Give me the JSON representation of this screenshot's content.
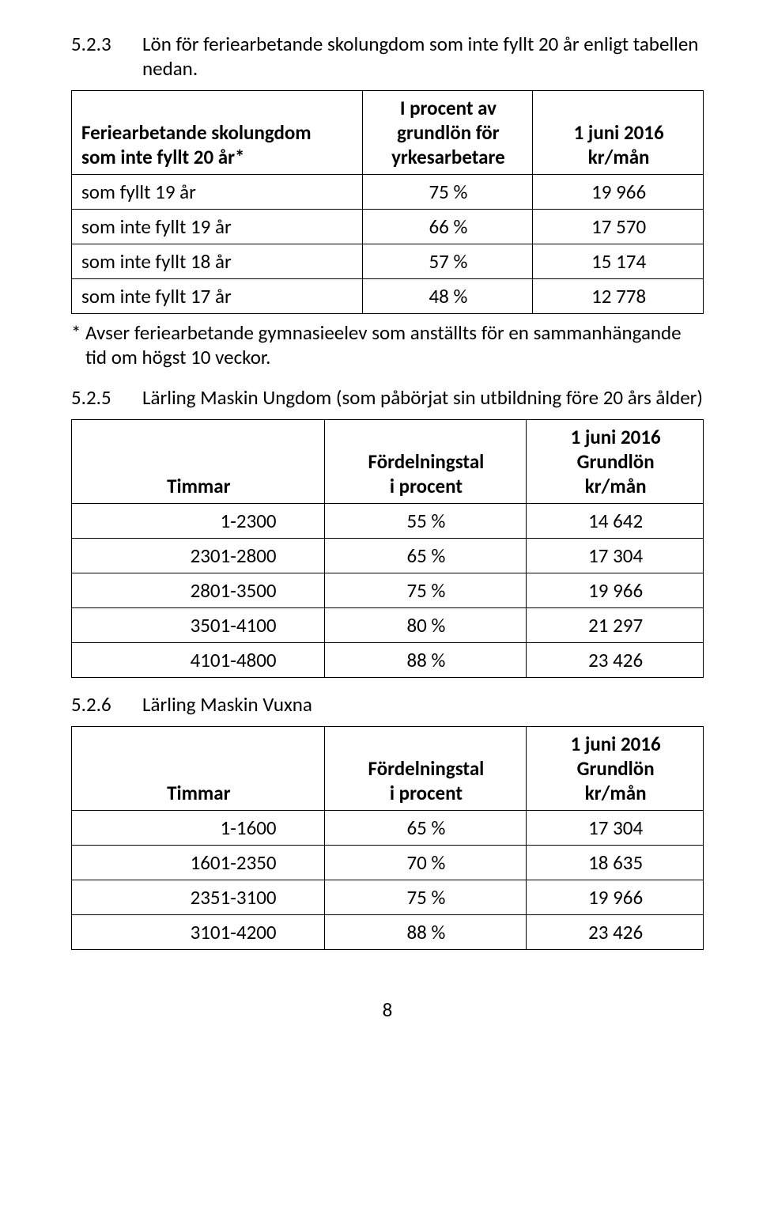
{
  "section523": {
    "num": "5.2.3",
    "title": "Lön för feriearbetande skolungdom som inte fyllt 20 år enligt tabellen nedan."
  },
  "table1": {
    "head": {
      "c1a": "Feriearbetande skolungdom",
      "c1b": "som inte fyllt 20 år*",
      "c2a": "I procent av",
      "c2b": "grundlön för",
      "c2c": "yrkesarbetare",
      "c3a": "1 juni 2016",
      "c3b": "kr/mån"
    },
    "rows": [
      {
        "label": "som fyllt 19 år",
        "pct": "75 %",
        "val": "19 966"
      },
      {
        "label": "som inte fyllt 19 år",
        "pct": "66 %",
        "val": "17 570"
      },
      {
        "label": "som inte fyllt 18 år",
        "pct": "57 %",
        "val": "15 174"
      },
      {
        "label": "som inte fyllt 17 år",
        "pct": "48 %",
        "val": "12 778"
      }
    ]
  },
  "footnote": {
    "star": "*",
    "text": "Avser feriearbetande gymnasieelev som anställts för en sammanhängande tid om högst 10 veckor."
  },
  "section525": {
    "num": "5.2.5",
    "title": "Lärling Maskin Ungdom (som påbörjat sin utbildning före 20 års ålder)"
  },
  "table2": {
    "head": {
      "c1": "Timmar",
      "c2a": "Fördelningstal",
      "c2b": "i procent",
      "c3a": "1 juni 2016",
      "c3b": "Grundlön",
      "c3c": "kr/mån"
    },
    "rows": [
      {
        "label": "1-2300",
        "pct": "55 %",
        "val": "14 642"
      },
      {
        "label": "2301-2800",
        "pct": "65 %",
        "val": "17 304"
      },
      {
        "label": "2801-3500",
        "pct": "75 %",
        "val": "19 966"
      },
      {
        "label": "3501-4100",
        "pct": "80 %",
        "val": "21 297"
      },
      {
        "label": "4101-4800",
        "pct": "88 %",
        "val": "23 426"
      }
    ]
  },
  "section526": {
    "num": "5.2.6",
    "title": "Lärling Maskin Vuxna"
  },
  "table3": {
    "head": {
      "c1": "Timmar",
      "c2a": "Fördelningstal",
      "c2b": "i procent",
      "c3a": "1 juni 2016",
      "c3b": "Grundlön",
      "c3c": "kr/mån"
    },
    "rows": [
      {
        "label": "1-1600",
        "pct": "65 %",
        "val": "17 304"
      },
      {
        "label": "1601-2350",
        "pct": "70 %",
        "val": "18 635"
      },
      {
        "label": "2351-3100",
        "pct": "75 %",
        "val": "19 966"
      },
      {
        "label": "3101-4200",
        "pct": "88 %",
        "val": "23 426"
      }
    ]
  },
  "pageNumber": "8"
}
